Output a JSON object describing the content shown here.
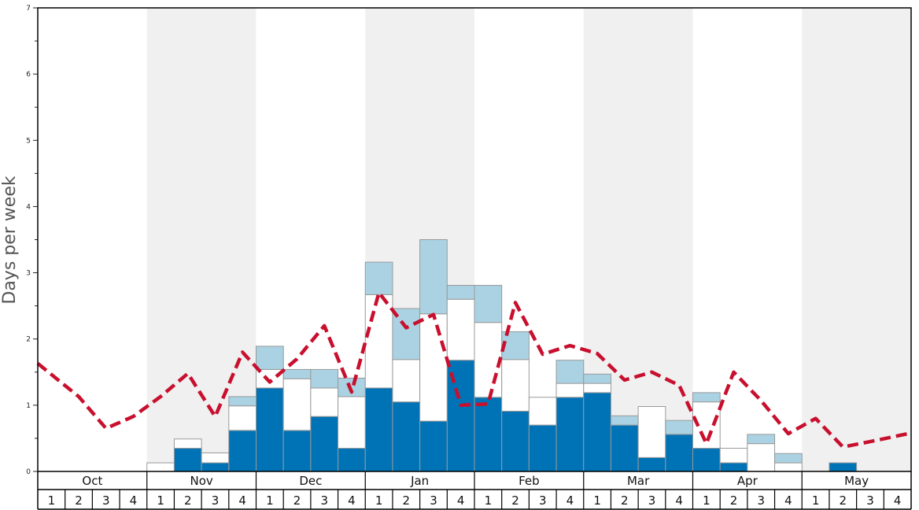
{
  "chart_data": {
    "type": "bar",
    "ylabel": "Days per week",
    "ylim": [
      0,
      7
    ],
    "y_ticks": [
      "0",
      "1",
      "2",
      "3",
      "4",
      "5",
      "6",
      "7"
    ],
    "months": [
      "Oct",
      "Nov",
      "Dec",
      "Jan",
      "Feb",
      "Mar",
      "Apr",
      "May"
    ],
    "weeks": [
      "1",
      "2",
      "3",
      "4"
    ],
    "shaded_months": [
      "Nov",
      "Jan",
      "Mar",
      "May"
    ],
    "colors": {
      "dark": "#0073b6",
      "white": "#ffffff",
      "light": "#aad2e2",
      "line": "#c8102e",
      "shade": "#f0f0f0",
      "bar_edge": "#999999"
    },
    "series": [
      {
        "values": [
          0,
          0,
          0,
          0,
          0,
          0.35,
          0.13,
          0.62,
          1.26,
          0.62,
          0.83,
          0.35,
          1.26,
          1.05,
          0.76,
          1.68,
          1.12,
          0.91,
          0.7,
          1.12,
          1.19,
          0.7,
          0.21,
          0.56,
          0.35,
          0.13,
          0,
          0,
          0,
          0.13,
          0,
          0
        ]
      },
      {
        "values": [
          0,
          0,
          0,
          0,
          0.13,
          0.14,
          0.15,
          0.37,
          0.28,
          0.78,
          0.43,
          0.78,
          1.41,
          0.64,
          1.62,
          0.92,
          1.13,
          0.78,
          0.42,
          0.21,
          0.14,
          0,
          0.77,
          0,
          0.7,
          0.22,
          0.42,
          0.13,
          0,
          0,
          0,
          0
        ]
      },
      {
        "values": [
          0,
          0,
          0,
          0,
          0,
          0,
          0,
          0.14,
          0.35,
          0.14,
          0.28,
          0.28,
          0.49,
          0.77,
          1.12,
          0.21,
          0.56,
          0.42,
          0,
          0.35,
          0.14,
          0.14,
          0,
          0.21,
          0.14,
          0,
          0.14,
          0.14,
          0,
          0,
          0,
          0
        ]
      }
    ],
    "line": [
      1.63,
      1.13,
      0.65,
      0.83,
      1.13,
      1.48,
      0.83,
      1.8,
      1.35,
      1.7,
      2.2,
      1.2,
      2.7,
      2.17,
      2.37,
      1.0,
      1.02,
      2.55,
      1.77,
      1.9,
      1.78,
      1.38,
      1.5,
      1.3,
      0.42,
      1.5,
      1.07,
      0.57,
      0.8,
      0.37,
      0.45,
      0.57
    ]
  }
}
